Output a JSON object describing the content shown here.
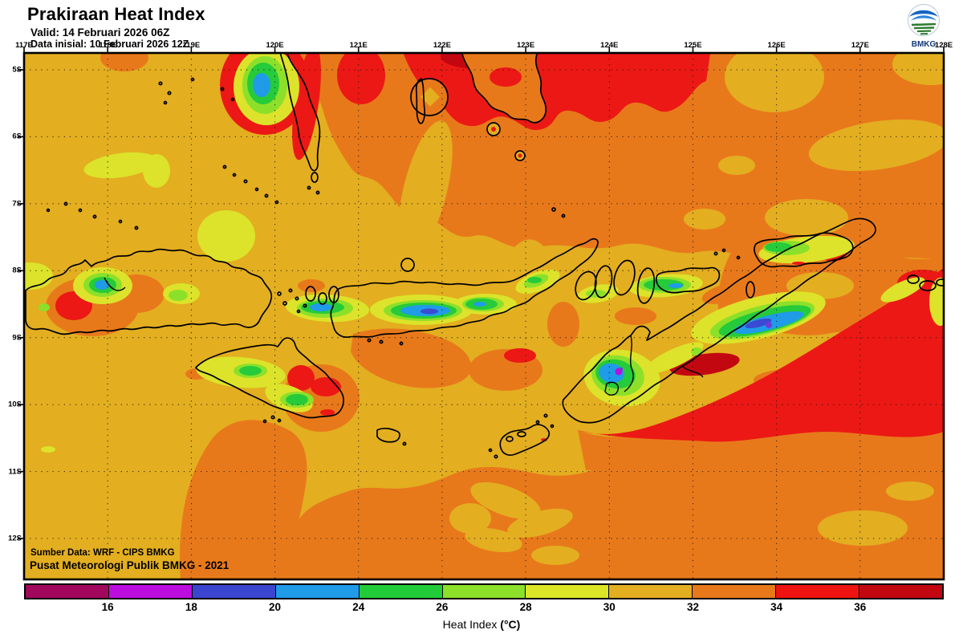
{
  "header": {
    "title": "Prakiraan Heat Index",
    "valid": "Valid: 14 Februari 2026 06Z",
    "initial": "Data inisial: 10 Februari 2026 12Z"
  },
  "logo": {
    "label": "BMKG"
  },
  "axes": {
    "lon": [
      "117E",
      "118E",
      "119E",
      "120E",
      "121E",
      "122E",
      "123E",
      "124E",
      "125E",
      "126E",
      "127E",
      "128E"
    ],
    "lat": [
      "5S",
      "6S",
      "7S",
      "8S",
      "9S",
      "10S",
      "11S",
      "12S"
    ]
  },
  "map": {
    "source1": "Sumber Data: WRF - CIPS BMKG",
    "source2": "Pusat Meteorologi Publik BMKG - 2021"
  },
  "colorbar": {
    "ticks": [
      "16",
      "18",
      "20",
      "24",
      "26",
      "28",
      "30",
      "32",
      "34",
      "36"
    ],
    "colors": [
      "#A2075E",
      "#BB0EDE",
      "#3A46D0",
      "#1F9BE8",
      "#22CC38",
      "#8CE02A",
      "#DDE626",
      "#E3AE20",
      "#E8791B",
      "#EE1310",
      "#C20711"
    ],
    "ranges": [
      "<16",
      "16-18",
      "18-20",
      "20-24",
      "24-26",
      "26-28",
      "28-30",
      "30-32",
      "32-34",
      "34-36",
      ">36"
    ],
    "caption_text": "Heat Index ",
    "caption_unit": "(°C)"
  }
}
